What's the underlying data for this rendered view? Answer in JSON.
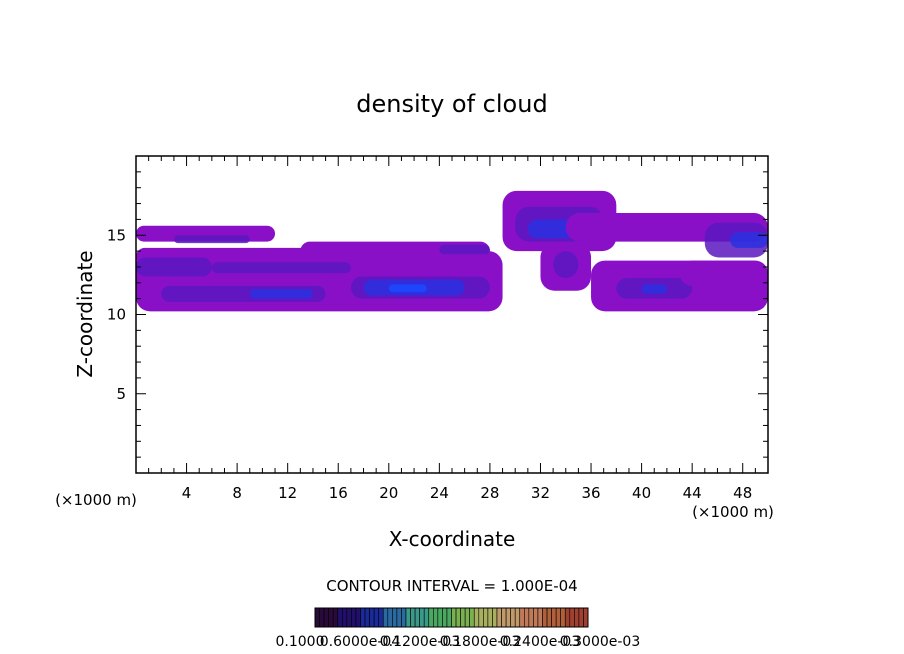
{
  "chart_data": {
    "type": "heatmap",
    "title": "density of cloud",
    "xlabel": "X-coordinate",
    "ylabel": "Z-coordinate",
    "x_unit_left": "(×1000 m)",
    "x_unit_right": "(×1000 m)",
    "xlim": [
      0,
      50
    ],
    "ylim": [
      0,
      20
    ],
    "x_ticks": [
      4,
      8,
      12,
      16,
      20,
      24,
      28,
      32,
      36,
      40,
      44,
      48
    ],
    "y_ticks": [
      5,
      10,
      15
    ],
    "x_tick_labels": [
      "4",
      "8",
      "12",
      "16",
      "20",
      "24",
      "28",
      "32",
      "36",
      "40",
      "44",
      "48"
    ],
    "y_tick_labels": [
      "5",
      "10",
      "15"
    ],
    "contour_interval_text": "CONTOUR INTERVAL = 1.000E-04",
    "colorbar_labels": [
      "0.1000",
      "0.6000e-04",
      "0.1200e-03",
      "0.1800e-03",
      "0.2400e-03",
      "0.3000e-03"
    ],
    "colorbar_colors": [
      "#2a0a3a",
      "#20106a",
      "#1a2a9a",
      "#2a6aa0",
      "#3a9a8a",
      "#4aa860",
      "#7ab050",
      "#a8b060",
      "#c09a6a",
      "#c07a5a",
      "#b0603a",
      "#a04030"
    ],
    "colors": {
      "cloud_base": "#8a10c8",
      "cloud_mid": "#5a18c0",
      "cloud_core": "#2a30e0",
      "cloud_peak": "#1a4aff"
    },
    "regions": [
      {
        "x": [
          0,
          11
        ],
        "z": [
          14.6,
          15.6
        ],
        "level": 1
      },
      {
        "x": [
          3,
          9
        ],
        "z": [
          14.5,
          15.0
        ],
        "level": 2
      },
      {
        "x": [
          0,
          29
        ],
        "z": [
          10.2,
          14.0
        ],
        "level": 1
      },
      {
        "x": [
          0,
          20
        ],
        "z": [
          13.1,
          14.2
        ],
        "level": 1
      },
      {
        "x": [
          13,
          28
        ],
        "z": [
          13.4,
          14.6
        ],
        "level": 1
      },
      {
        "x": [
          0,
          6
        ],
        "z": [
          12.4,
          13.6
        ],
        "level": 2
      },
      {
        "x": [
          6,
          17
        ],
        "z": [
          12.6,
          13.3
        ],
        "level": 2
      },
      {
        "x": [
          2,
          15
        ],
        "z": [
          10.8,
          11.8
        ],
        "level": 2
      },
      {
        "x": [
          9,
          14
        ],
        "z": [
          11.0,
          11.6
        ],
        "level": 3
      },
      {
        "x": [
          17,
          28
        ],
        "z": [
          11.0,
          12.4
        ],
        "level": 2
      },
      {
        "x": [
          18,
          26
        ],
        "z": [
          11.2,
          12.2
        ],
        "level": 3
      },
      {
        "x": [
          20,
          23
        ],
        "z": [
          11.4,
          11.9
        ],
        "level": 4
      },
      {
        "x": [
          24,
          28
        ],
        "z": [
          13.8,
          14.4
        ],
        "level": 2
      },
      {
        "x": [
          29,
          38
        ],
        "z": [
          14.0,
          17.8
        ],
        "level": 1
      },
      {
        "x": [
          30,
          37
        ],
        "z": [
          14.6,
          16.8
        ],
        "level": 2
      },
      {
        "x": [
          31,
          36
        ],
        "z": [
          14.8,
          16.0
        ],
        "level": 3
      },
      {
        "x": [
          32,
          36
        ],
        "z": [
          11.5,
          14.5
        ],
        "level": 1
      },
      {
        "x": [
          33,
          35
        ],
        "z": [
          12.3,
          14.0
        ],
        "level": 2
      },
      {
        "x": [
          34,
          50
        ],
        "z": [
          14.6,
          16.4
        ],
        "level": 1
      },
      {
        "x": [
          45,
          50
        ],
        "z": [
          13.6,
          15.8
        ],
        "level": 2
      },
      {
        "x": [
          47,
          50
        ],
        "z": [
          14.2,
          15.2
        ],
        "level": 3
      },
      {
        "x": [
          36,
          50
        ],
        "z": [
          10.2,
          13.4
        ],
        "level": 1
      },
      {
        "x": [
          38,
          44
        ],
        "z": [
          11.0,
          12.3
        ],
        "level": 2
      },
      {
        "x": [
          40,
          42
        ],
        "z": [
          11.3,
          11.9
        ],
        "level": 3
      },
      {
        "x": [
          43,
          50
        ],
        "z": [
          11.8,
          13.4
        ],
        "level": 1
      }
    ],
    "grid": false,
    "legend": "bottom"
  }
}
